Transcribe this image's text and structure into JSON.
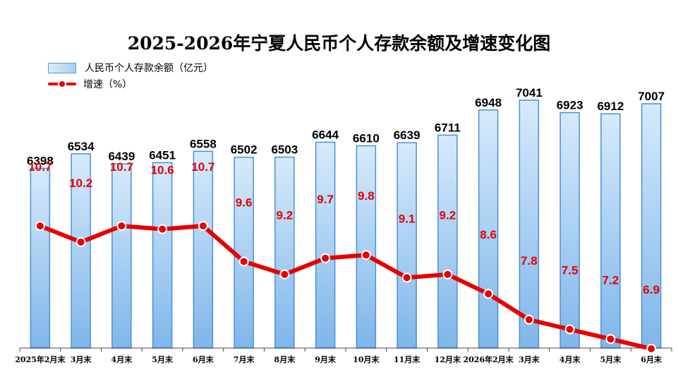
{
  "title": "2025-2026年宁夏人民币个人存款余额及增速变化图",
  "legend": {
    "bar_label": "人民币个人存款余额（亿元）",
    "line_label": "增速（%）"
  },
  "colors": {
    "bar_fill_light": "#d6eafb",
    "bar_fill_dark": "#7fb6ea",
    "bar_border": "#4a90d9",
    "line": "#e60000",
    "line_label": "#e60000"
  },
  "chart_data": {
    "type": "bar",
    "categories": [
      "2025年2月末",
      "3月末",
      "4月末",
      "5月末",
      "6月末",
      "7月末",
      "8月末",
      "9月末",
      "10月末",
      "11月末",
      "12月末",
      "2026年2月末",
      "3月末",
      "4月末",
      "5月末",
      "6月末"
    ],
    "series": [
      {
        "name": "人民币个人存款余额（亿元）",
        "type": "bar",
        "values": [
          6398,
          6534,
          6439,
          6451,
          6558,
          6502,
          6503,
          6644,
          6610,
          6639,
          6711,
          6948,
          7041,
          6923,
          6912,
          7007
        ]
      },
      {
        "name": "增速（%）",
        "type": "line",
        "values": [
          10.7,
          10.2,
          10.7,
          10.6,
          10.7,
          9.6,
          9.2,
          9.7,
          9.8,
          9.1,
          9.2,
          8.6,
          7.8,
          7.5,
          7.2,
          6.9
        ]
      }
    ],
    "bar_ylim": [
      4700,
      7200
    ],
    "line_ylim": [
      6.9,
      14.5
    ],
    "grid": false,
    "legend_position": "top-left"
  }
}
